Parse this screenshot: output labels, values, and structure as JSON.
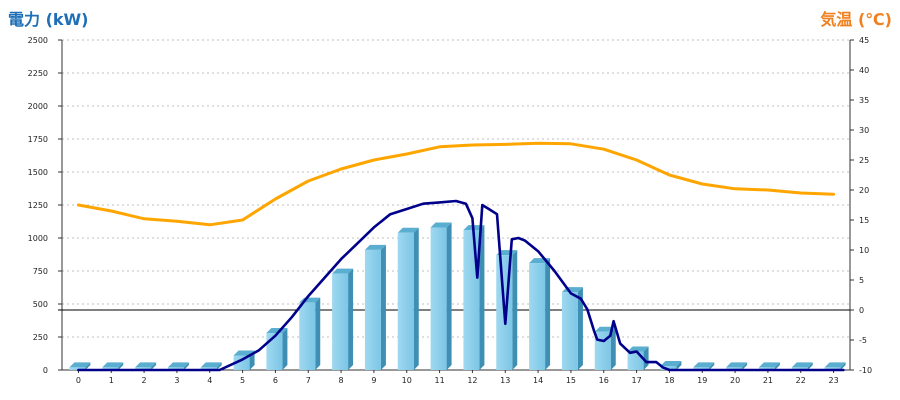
{
  "chart_data": {
    "type": "bar+line",
    "left_axis_title": "電力 (kW)",
    "right_axis_title": "気温 (℃)",
    "left_ylim": [
      0,
      2500
    ],
    "left_ticks": [
      0,
      250,
      500,
      750,
      1000,
      1250,
      1500,
      1750,
      2000,
      2250,
      2500
    ],
    "right_ylim": [
      -10,
      45
    ],
    "right_ticks": [
      -10,
      -5,
      0,
      5,
      10,
      15,
      20,
      25,
      30,
      35,
      40,
      45
    ],
    "categories": [
      "0",
      "1",
      "2",
      "3",
      "4",
      "5",
      "6",
      "7",
      "8",
      "9",
      "10",
      "11",
      "12",
      "13",
      "14",
      "15",
      "16",
      "17",
      "18",
      "19",
      "20",
      "21",
      "22",
      "23"
    ],
    "grid": true,
    "series": [
      {
        "kind": "bar",
        "axis": "left",
        "color": "#87ceeb",
        "values": [
          20,
          20,
          20,
          20,
          20,
          110,
          280,
          510,
          730,
          910,
          1040,
          1080,
          1060,
          870,
          810,
          590,
          290,
          140,
          30,
          20,
          20,
          20,
          20,
          20
        ]
      },
      {
        "kind": "line",
        "axis": "left",
        "color": "#00008b",
        "points": [
          [
            0,
            0
          ],
          [
            4.3,
            0
          ],
          [
            5,
            80
          ],
          [
            5.5,
            150
          ],
          [
            6,
            260
          ],
          [
            6.5,
            400
          ],
          [
            7,
            560
          ],
          [
            7.5,
            700
          ],
          [
            8,
            840
          ],
          [
            8.5,
            960
          ],
          [
            9,
            1080
          ],
          [
            9.5,
            1180
          ],
          [
            10,
            1220
          ],
          [
            10.5,
            1260
          ],
          [
            11,
            1270
          ],
          [
            11.5,
            1280
          ],
          [
            11.8,
            1260
          ],
          [
            12,
            1150
          ],
          [
            12.15,
            700
          ],
          [
            12.3,
            1250
          ],
          [
            12.5,
            1220
          ],
          [
            12.75,
            1180
          ],
          [
            13,
            350
          ],
          [
            13.2,
            990
          ],
          [
            13.4,
            1000
          ],
          [
            13.6,
            980
          ],
          [
            14,
            900
          ],
          [
            14.5,
            750
          ],
          [
            15,
            580
          ],
          [
            15.3,
            540
          ],
          [
            15.5,
            460
          ],
          [
            15.7,
            300
          ],
          [
            15.8,
            230
          ],
          [
            16,
            220
          ],
          [
            16.2,
            260
          ],
          [
            16.3,
            370
          ],
          [
            16.5,
            200
          ],
          [
            16.8,
            130
          ],
          [
            17,
            140
          ],
          [
            17.3,
            60
          ],
          [
            17.6,
            60
          ],
          [
            17.8,
            20
          ],
          [
            18,
            0
          ],
          [
            23.3,
            0
          ]
        ]
      },
      {
        "kind": "line",
        "axis": "right",
        "color": "#ffa500",
        "points": [
          [
            0,
            17.5
          ],
          [
            1,
            16.5
          ],
          [
            2,
            15.2
          ],
          [
            3,
            14.8
          ],
          [
            4,
            14.2
          ],
          [
            5,
            15.0
          ],
          [
            6,
            18.5
          ],
          [
            7,
            21.5
          ],
          [
            8,
            23.5
          ],
          [
            9,
            25.0
          ],
          [
            10,
            26.0
          ],
          [
            11,
            27.2
          ],
          [
            12,
            27.5
          ],
          [
            13,
            27.6
          ],
          [
            14,
            27.8
          ],
          [
            15,
            27.7
          ],
          [
            16,
            26.8
          ],
          [
            17,
            25.0
          ],
          [
            18,
            22.5
          ],
          [
            19,
            21.0
          ],
          [
            20,
            20.2
          ],
          [
            21,
            20.0
          ],
          [
            22,
            19.5
          ],
          [
            23,
            19.3
          ]
        ]
      }
    ]
  },
  "colors": {
    "left_title": "#1e6fb5",
    "right_title": "#f08020"
  }
}
